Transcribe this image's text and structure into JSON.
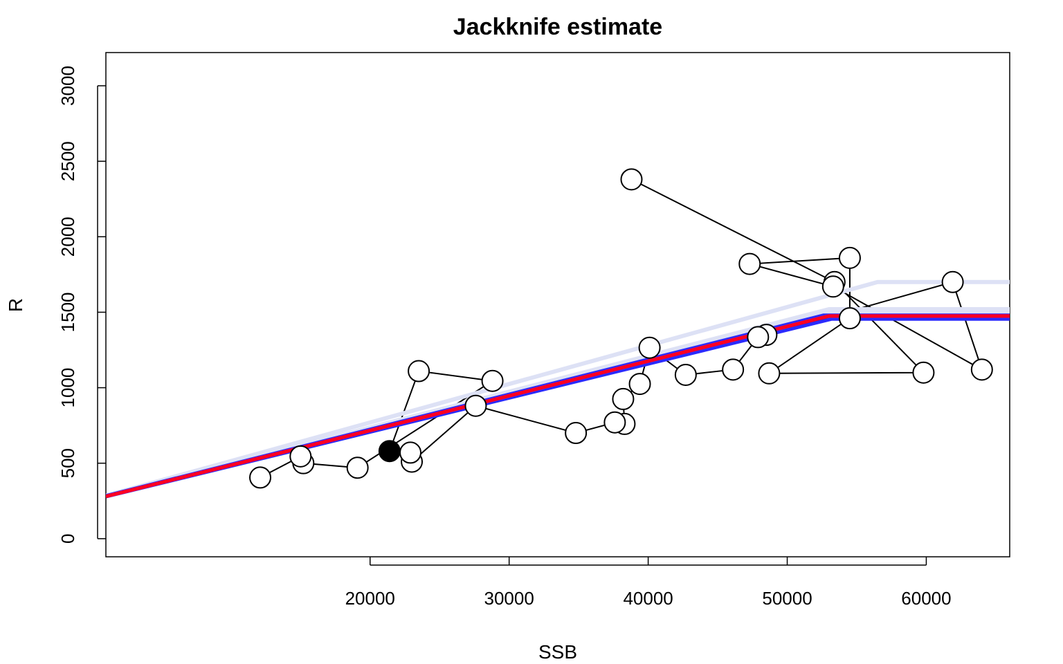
{
  "chart_data": {
    "type": "scatter",
    "title": "Jackknife estimate",
    "xlabel": "SSB",
    "ylabel": "R",
    "xlim": [
      1000,
      66000
    ],
    "ylim": [
      -120,
      3220
    ],
    "x_ticks": [
      20000,
      30000,
      40000,
      50000,
      60000
    ],
    "y_ticks": [
      0,
      500,
      1000,
      1500,
      2000,
      2500,
      3000
    ],
    "grid": false,
    "legend": "none",
    "colors": {
      "points": "#000000",
      "connecting_line": "#000000",
      "fit_main": "#ff0022",
      "fit_jackknife": "#2b2bff",
      "fit_jackknife_faint": "#dde1f5"
    },
    "observations": [
      {
        "ssb": 38800,
        "r": 2380
      },
      {
        "ssb": 53400,
        "r": 1700
      },
      {
        "ssb": 59800,
        "r": 1100
      },
      {
        "ssb": 48700,
        "r": 1095
      },
      {
        "ssb": 54500,
        "r": 1460
      },
      {
        "ssb": 54500,
        "r": 1860
      },
      {
        "ssb": 47300,
        "r": 1820
      },
      {
        "ssb": 53300,
        "r": 1670
      },
      {
        "ssb": 64000,
        "r": 1120
      },
      {
        "ssb": 61900,
        "r": 1700
      },
      {
        "ssb": 48500,
        "r": 1350
      },
      {
        "ssb": 47900,
        "r": 1335
      },
      {
        "ssb": 46100,
        "r": 1120
      },
      {
        "ssb": 42700,
        "r": 1085
      },
      {
        "ssb": 40100,
        "r": 1265
      },
      {
        "ssb": 39400,
        "r": 1025
      },
      {
        "ssb": 38200,
        "r": 925
      },
      {
        "ssb": 38300,
        "r": 760
      },
      {
        "ssb": 37600,
        "r": 770
      },
      {
        "ssb": 34800,
        "r": 700
      },
      {
        "ssb": 27600,
        "r": 880
      },
      {
        "ssb": 23000,
        "r": 510
      },
      {
        "ssb": 22900,
        "r": 570
      },
      {
        "ssb": 21400,
        "r": 580,
        "filled": true
      },
      {
        "ssb": 23500,
        "r": 1110
      },
      {
        "ssb": 28800,
        "r": 1045
      },
      {
        "ssb": 19100,
        "r": 470
      },
      {
        "ssb": 15200,
        "r": 500
      },
      {
        "ssb": 15000,
        "r": 545
      },
      {
        "ssb": 12100,
        "r": 405
      }
    ],
    "fits": [
      {
        "role": "jackknife",
        "style": "faint",
        "points": [
          [
            1000,
            285
          ],
          [
            56500,
            1700
          ],
          [
            66000,
            1700
          ]
        ]
      },
      {
        "role": "jackknife",
        "style": "faint",
        "points": [
          [
            1000,
            285
          ],
          [
            53000,
            1520
          ],
          [
            66000,
            1520
          ]
        ]
      },
      {
        "role": "jackknife",
        "style": "faint",
        "points": [
          [
            1000,
            282
          ],
          [
            52700,
            1500
          ],
          [
            66000,
            1500
          ]
        ]
      },
      {
        "role": "jackknife",
        "style": "solid",
        "points": [
          [
            1000,
            278
          ],
          [
            53200,
            1455
          ],
          [
            66000,
            1455
          ]
        ]
      },
      {
        "role": "jackknife",
        "style": "solid",
        "points": [
          [
            1000,
            284
          ],
          [
            52600,
            1480
          ],
          [
            66000,
            1480
          ]
        ]
      },
      {
        "role": "main",
        "points": [
          [
            1000,
            280
          ],
          [
            53000,
            1475
          ],
          [
            66000,
            1475
          ]
        ]
      }
    ]
  }
}
